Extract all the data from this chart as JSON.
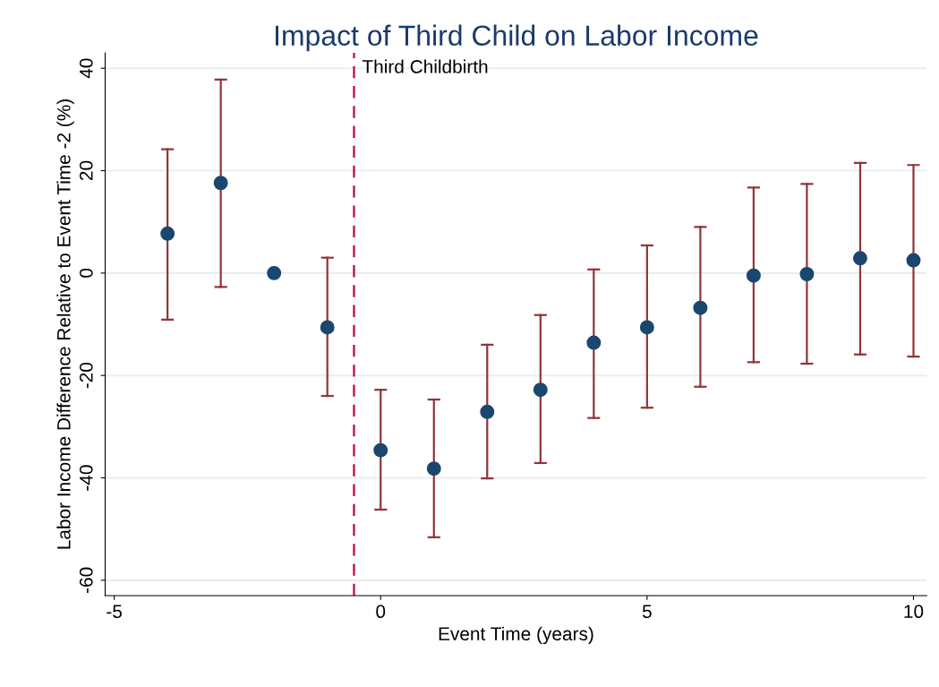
{
  "chart_data": {
    "type": "scatter",
    "title": "Impact of Third Child on Labor Income",
    "xlabel": "Event Time (years)",
    "ylabel": "Labor Income Difference Relative to Event Time -2 (%)",
    "x": [
      -4,
      -3,
      -2,
      -1,
      0,
      1,
      2,
      3,
      4,
      5,
      6,
      7,
      8,
      9,
      10
    ],
    "series": [
      {
        "color": "#1a476f",
        "values": [
          7.7,
          17.6,
          0,
          -10.6,
          -34.6,
          -38.2,
          -27.1,
          -22.8,
          -13.6,
          -10.6,
          -6.8,
          -0.5,
          -0.2,
          2.9,
          2.5
        ],
        "errors": [
          [
            -9.1,
            24.2
          ],
          [
            -2.7,
            37.8
          ],
          null,
          [
            -24.0,
            3.0
          ],
          [
            -46.2,
            -22.8
          ],
          [
            -51.6,
            -24.7
          ],
          [
            -40.1,
            -14.0
          ],
          [
            -37.1,
            -8.2
          ],
          [
            -28.3,
            0.7
          ],
          [
            -26.3,
            5.4
          ],
          [
            -22.2,
            9.0
          ],
          [
            -17.4,
            16.7
          ],
          [
            -17.7,
            17.4
          ],
          [
            -15.9,
            21.5
          ],
          [
            -16.3,
            21.1
          ]
        ]
      }
    ],
    "xlim": [
      -5.17,
      10.25
    ],
    "ylim": [
      -63,
      43
    ],
    "xticks": [
      -5,
      0,
      5,
      10
    ],
    "yticks": [
      -60,
      -40,
      -20,
      0,
      20,
      40
    ],
    "grid": "y",
    "marker": "circle",
    "ref_lines": [
      {
        "axis": "x",
        "value": -0.5,
        "label": "Third Childbirth",
        "color": "#c10534",
        "line_style": "dashed"
      }
    ]
  }
}
